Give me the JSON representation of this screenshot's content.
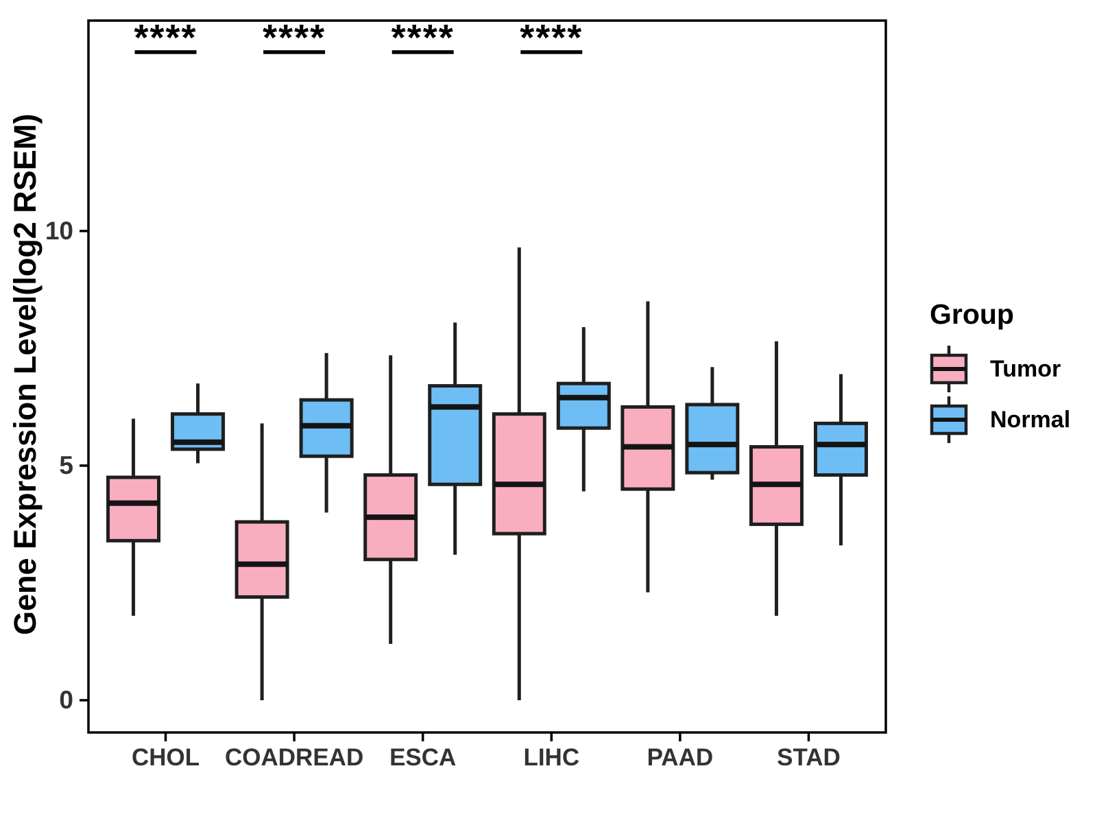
{
  "chart_data": {
    "type": "boxplot",
    "title": "",
    "xlabel": "",
    "ylabel": "Gene Expression Level(log2 RSEM)",
    "categories": [
      "CHOL",
      "COADREAD",
      "ESCA",
      "LIHC",
      "PAAD",
      "STAD"
    ],
    "significance": [
      "****",
      "****",
      "****",
      "****",
      null,
      null
    ],
    "axis": {
      "y_ticks": [
        "0",
        "5",
        "10"
      ],
      "y_range": [
        -0.7,
        14.5
      ],
      "grid": "off"
    },
    "legend": {
      "title": "Group",
      "position": "right",
      "entries": [
        {
          "label": "Tumor",
          "color": "#F9AEBF"
        },
        {
          "label": "Normal",
          "color": "#6EBEF5"
        }
      ]
    },
    "colors": {
      "tumor_fill": "#F9AEBF",
      "normal_fill": "#6EBEF5",
      "box_stroke": "#1f1f1f",
      "median_stroke": "#141414",
      "axis_text": "#333333",
      "panel_border": "#000000"
    },
    "series": [
      {
        "name": "Tumor",
        "color": "#F9AEBF",
        "boxes": [
          {
            "category": "CHOL",
            "min": 1.8,
            "q1": 3.4,
            "median": 4.2,
            "q3": 4.75,
            "max": 6.0
          },
          {
            "category": "COADREAD",
            "min": 0.0,
            "q1": 2.2,
            "median": 2.9,
            "q3": 3.8,
            "max": 5.9
          },
          {
            "category": "ESCA",
            "min": 1.2,
            "q1": 3.0,
            "median": 3.9,
            "q3": 4.8,
            "max": 7.35
          },
          {
            "category": "LIHC",
            "min": 0.0,
            "q1": 3.55,
            "median": 4.6,
            "q3": 6.1,
            "max": 9.65
          },
          {
            "category": "PAAD",
            "min": 2.3,
            "q1": 4.5,
            "median": 5.4,
            "q3": 6.25,
            "max": 8.5
          },
          {
            "category": "STAD",
            "min": 1.8,
            "q1": 3.75,
            "median": 4.6,
            "q3": 5.4,
            "max": 7.65
          }
        ]
      },
      {
        "name": "Normal",
        "color": "#6EBEF5",
        "boxes": [
          {
            "category": "CHOL",
            "min": 5.05,
            "q1": 5.35,
            "median": 5.5,
            "q3": 6.1,
            "max": 6.75
          },
          {
            "category": "COADREAD",
            "min": 4.0,
            "q1": 5.2,
            "median": 5.85,
            "q3": 6.4,
            "max": 7.4
          },
          {
            "category": "ESCA",
            "min": 3.1,
            "q1": 4.6,
            "median": 6.25,
            "q3": 6.7,
            "max": 8.05
          },
          {
            "category": "LIHC",
            "min": 4.45,
            "q1": 5.8,
            "median": 6.45,
            "q3": 6.75,
            "max": 7.95
          },
          {
            "category": "PAAD",
            "min": 4.7,
            "q1": 4.85,
            "median": 5.45,
            "q3": 6.3,
            "max": 7.1
          },
          {
            "category": "STAD",
            "min": 3.3,
            "q1": 4.8,
            "median": 5.45,
            "q3": 5.9,
            "max": 6.95
          }
        ]
      }
    ]
  }
}
